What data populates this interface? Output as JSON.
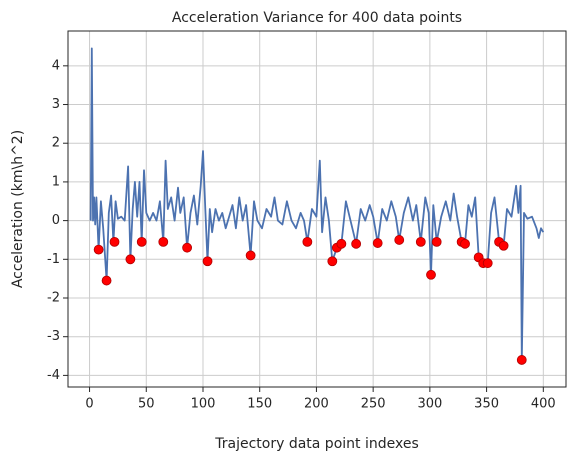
{
  "chart_data": {
    "type": "line",
    "title": "Acceleration Variance for 400 data points",
    "xlabel": "Trajectory data point indexes",
    "ylabel": "Acceleration (km\\h^2)",
    "xlim": [
      -19,
      420
    ],
    "ylim": [
      -4.3,
      4.9
    ],
    "xticks": [
      0,
      50,
      100,
      150,
      200,
      250,
      300,
      350,
      400
    ],
    "yticks": [
      -4,
      -3,
      -2,
      -1,
      0,
      1,
      2,
      3,
      4
    ],
    "grid": true,
    "series": [
      {
        "type": "line",
        "color": "#4c72b0",
        "x": [
          1,
          2,
          3,
          4,
          5,
          6,
          8,
          10,
          12,
          15,
          17,
          19,
          21,
          23,
          25,
          28,
          31,
          34,
          36,
          38,
          40,
          42,
          44,
          46,
          48,
          50,
          53,
          56,
          59,
          62,
          65,
          67,
          69,
          72,
          75,
          78,
          80,
          83,
          86,
          89,
          92,
          95,
          98,
          100,
          102,
          104,
          106,
          108,
          111,
          114,
          117,
          120,
          123,
          126,
          129,
          132,
          135,
          138,
          142,
          145,
          148,
          152,
          156,
          160,
          163,
          166,
          170,
          174,
          178,
          182,
          186,
          189,
          192,
          196,
          200,
          203,
          205,
          208,
          211,
          214,
          218,
          222,
          226,
          230,
          235,
          239,
          243,
          247,
          250,
          254,
          258,
          262,
          266,
          270,
          273,
          277,
          281,
          285,
          288,
          292,
          296,
          299,
          301,
          303,
          306,
          310,
          314,
          318,
          321,
          324,
          328,
          331,
          334,
          337,
          340,
          343,
          347,
          351,
          354,
          357,
          361,
          365,
          368,
          372,
          376,
          378,
          380,
          381,
          383,
          386,
          390,
          394,
          396,
          398,
          400
        ],
        "values": [
          0,
          4.45,
          0,
          0.6,
          -0.1,
          0.6,
          -0.75,
          0.5,
          -0.2,
          -1.55,
          0.2,
          0.65,
          -0.55,
          0.5,
          0.05,
          0.1,
          0,
          1.4,
          -1.0,
          0.3,
          1.0,
          0.1,
          1.0,
          -0.55,
          1.3,
          0.2,
          0,
          0.2,
          0,
          0.5,
          -0.55,
          1.55,
          0.3,
          0.6,
          0,
          0.85,
          0.2,
          0.6,
          -0.7,
          0.2,
          0.65,
          -0.1,
          0.9,
          1.8,
          0.3,
          -1.05,
          0.3,
          -0.3,
          0.3,
          0,
          0.2,
          -0.2,
          0.1,
          0.4,
          -0.2,
          0.6,
          0,
          0.4,
          -0.9,
          0.5,
          0,
          -0.2,
          0.3,
          0.1,
          0.6,
          0,
          -0.1,
          0.5,
          0,
          -0.2,
          0.2,
          0,
          -0.55,
          0.3,
          0.1,
          1.55,
          -0.3,
          0.6,
          0,
          -1.05,
          -0.7,
          -0.6,
          0.5,
          0,
          -0.6,
          0.3,
          0,
          0.4,
          0.1,
          -0.58,
          0.3,
          0,
          0.5,
          0.1,
          -0.5,
          0.2,
          0.6,
          0,
          0.4,
          -0.55,
          0.6,
          0.2,
          -1.4,
          0.4,
          -0.55,
          0.1,
          0.5,
          0,
          0.7,
          0.1,
          -0.55,
          -0.6,
          0.4,
          0.1,
          0.6,
          -0.95,
          -1.1,
          -1.1,
          0.2,
          0.6,
          -0.55,
          -0.65,
          0.3,
          0.1,
          0.9,
          0.2,
          0.9,
          -3.6,
          0.2,
          0.05,
          0.1,
          -0.2,
          -0.45,
          -0.2,
          -0.3
        ]
      },
      {
        "type": "scatter",
        "color": "#ff0000",
        "x": [
          8,
          15,
          22,
          36,
          46,
          65,
          86,
          104,
          142,
          192,
          214,
          218,
          222,
          235,
          254,
          273,
          292,
          301,
          306,
          328,
          331,
          343,
          347,
          351,
          361,
          365,
          381
        ],
        "values": [
          -0.75,
          -1.55,
          -0.55,
          -1.0,
          -0.55,
          -0.55,
          -0.7,
          -1.05,
          -0.9,
          -0.55,
          -1.05,
          -0.7,
          -0.6,
          -0.6,
          -0.58,
          -0.5,
          -0.55,
          -1.4,
          -0.55,
          -0.55,
          -0.6,
          -0.95,
          -1.1,
          -1.1,
          -0.55,
          -0.65,
          -3.6
        ]
      }
    ]
  }
}
